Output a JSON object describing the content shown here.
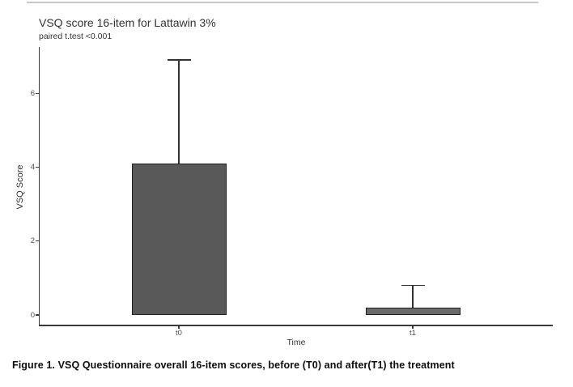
{
  "page": {
    "caption": "Figure 1. VSQ Questionnaire overall 16-item scores, before (T0) and after(T1) the treatment"
  },
  "chart_data": {
    "type": "bar",
    "title": "VSQ score 16-item for Lattawin 3%",
    "subtitle": "paired t.test <0.001",
    "xlabel": "Time",
    "ylabel": "VSQ Score",
    "categories": [
      "t0",
      "t1"
    ],
    "values": [
      4.1,
      0.2
    ],
    "error_upper": [
      6.9,
      0.8
    ],
    "yticks": [
      0,
      2,
      4,
      6
    ],
    "ylim": [
      -0.3,
      7.25
    ],
    "grid": false,
    "legend": false,
    "colors": {
      "bar_fills": [
        "#595959",
        "#6a6a6a"
      ],
      "bar_border": "#1f1f1f",
      "axis_line": "#3a3a3a",
      "error_bar": "#333333",
      "tick_label": "#4d4d4d",
      "title_text": "#333333",
      "top_rule": "#c8c8c8"
    }
  }
}
